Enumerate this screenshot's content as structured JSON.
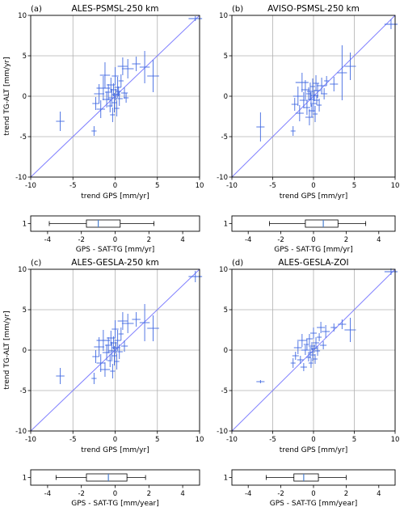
{
  "chart_data": [
    {
      "type": "scatter",
      "panel_label": "(a)",
      "title": "ALES-PSMSL-250 km",
      "xlabel": "trend GPS [mm/yr]",
      "ylabel": "trend TG-ALT [mm/yr]",
      "xlim": [
        -10,
        10
      ],
      "ylim": [
        -10,
        10
      ],
      "xticks": [
        "-10",
        "-5",
        "0",
        "5",
        "10"
      ],
      "yticks": [
        "-10",
        "-5",
        "0",
        "5",
        "10"
      ],
      "grid": true,
      "one_to_one_line": true,
      "points": [
        {
          "x": -6.5,
          "y": -3.1,
          "xe": 0.5,
          "ye": 1.2
        },
        {
          "x": -2.5,
          "y": -4.3,
          "xe": 0.3,
          "ye": 0.6
        },
        {
          "x": -2.3,
          "y": -0.9,
          "xe": 0.4,
          "ye": 0.8
        },
        {
          "x": -1.9,
          "y": 0.3,
          "xe": 0.6,
          "ye": 1.2
        },
        {
          "x": -1.7,
          "y": -1.6,
          "xe": 0.5,
          "ye": 1.1
        },
        {
          "x": -1.4,
          "y": 1.0,
          "xe": 0.8,
          "ye": 1.5
        },
        {
          "x": -1.2,
          "y": 2.6,
          "xe": 0.6,
          "ye": 1.6
        },
        {
          "x": -1.0,
          "y": -0.4,
          "xe": 0.5,
          "ye": 1.0
        },
        {
          "x": -0.8,
          "y": 0.5,
          "xe": 0.4,
          "ye": 1.0
        },
        {
          "x": -0.6,
          "y": -1.2,
          "xe": 0.3,
          "ye": 0.8
        },
        {
          "x": -0.5,
          "y": 1.4,
          "xe": 0.5,
          "ye": 0.9
        },
        {
          "x": -0.4,
          "y": -0.2,
          "xe": 0.4,
          "ye": 1.1
        },
        {
          "x": -0.3,
          "y": -2.3,
          "xe": 0.3,
          "ye": 0.9
        },
        {
          "x": -0.2,
          "y": 0.8,
          "xe": 0.4,
          "ye": 0.8
        },
        {
          "x": -0.1,
          "y": -0.8,
          "xe": 0.3,
          "ye": 1.2
        },
        {
          "x": 0.0,
          "y": 2.5,
          "xe": 0.4,
          "ye": 1.1
        },
        {
          "x": 0.1,
          "y": 0.2,
          "xe": 0.5,
          "ye": 0.7
        },
        {
          "x": 0.2,
          "y": -1.5,
          "xe": 0.3,
          "ye": 1.0
        },
        {
          "x": 0.3,
          "y": 1.1,
          "xe": 0.4,
          "ye": 1.3
        },
        {
          "x": 0.4,
          "y": 0.6,
          "xe": 0.3,
          "ye": 0.6
        },
        {
          "x": 0.5,
          "y": -0.3,
          "xe": 0.4,
          "ye": 0.9
        },
        {
          "x": 0.7,
          "y": 1.9,
          "xe": 0.3,
          "ye": 0.8
        },
        {
          "x": 0.9,
          "y": 3.7,
          "xe": 0.6,
          "ye": 1.1
        },
        {
          "x": 1.1,
          "y": 0.4,
          "xe": 0.4,
          "ye": 0.7
        },
        {
          "x": 1.3,
          "y": -0.2,
          "xe": 0.3,
          "ye": 0.6
        },
        {
          "x": 1.5,
          "y": 3.4,
          "xe": 0.7,
          "ye": 1.2
        },
        {
          "x": 2.5,
          "y": 4.0,
          "xe": 0.5,
          "ye": 0.9
        },
        {
          "x": 3.5,
          "y": 3.6,
          "xe": 0.6,
          "ye": 2.0
        },
        {
          "x": 4.5,
          "y": 2.5,
          "xe": 0.7,
          "ye": 2.0
        },
        {
          "x": 9.5,
          "y": 9.6,
          "xe": 0.8,
          "ye": 0.3
        }
      ]
    },
    {
      "type": "scatter",
      "panel_label": "(b)",
      "title": "AVISO-PSMSL-250 km",
      "xlabel": "trend GPS [mm/yr]",
      "ylabel": "",
      "xlim": [
        -10,
        10
      ],
      "ylim": [
        -10,
        10
      ],
      "xticks": [
        "-10",
        "-5",
        "0",
        "5",
        "10"
      ],
      "yticks": [
        "-10",
        "-5",
        "0",
        "5",
        "10"
      ],
      "grid": true,
      "one_to_one_line": true,
      "points": [
        {
          "x": -6.5,
          "y": -3.8,
          "xe": 0.5,
          "ye": 1.8
        },
        {
          "x": -2.5,
          "y": -4.3,
          "xe": 0.3,
          "ye": 0.6
        },
        {
          "x": -2.3,
          "y": -1.0,
          "xe": 0.4,
          "ye": 0.8
        },
        {
          "x": -1.9,
          "y": 0.0,
          "xe": 0.6,
          "ye": 1.2
        },
        {
          "x": -1.7,
          "y": -2.1,
          "xe": 0.5,
          "ye": 1.0
        },
        {
          "x": -1.4,
          "y": 1.7,
          "xe": 0.8,
          "ye": 1.2
        },
        {
          "x": -1.2,
          "y": -0.5,
          "xe": 0.5,
          "ye": 1.0
        },
        {
          "x": -1.0,
          "y": 0.8,
          "xe": 0.5,
          "ye": 1.2
        },
        {
          "x": -0.8,
          "y": -1.4,
          "xe": 0.4,
          "ye": 0.9
        },
        {
          "x": -0.6,
          "y": 0.3,
          "xe": 0.3,
          "ye": 0.8
        },
        {
          "x": -0.5,
          "y": -2.6,
          "xe": 0.5,
          "ye": 1.0
        },
        {
          "x": -0.4,
          "y": 0.6,
          "xe": 0.4,
          "ye": 1.1
        },
        {
          "x": -0.3,
          "y": -0.4,
          "xe": 0.3,
          "ye": 0.9
        },
        {
          "x": -0.2,
          "y": -1.8,
          "xe": 0.4,
          "ye": 0.8
        },
        {
          "x": -0.1,
          "y": 1.2,
          "xe": 0.3,
          "ye": 1.0
        },
        {
          "x": 0.0,
          "y": -0.9,
          "xe": 0.4,
          "ye": 1.1
        },
        {
          "x": 0.1,
          "y": 0.1,
          "xe": 0.5,
          "ye": 0.7
        },
        {
          "x": 0.2,
          "y": -2.2,
          "xe": 0.3,
          "ye": 1.0
        },
        {
          "x": 0.3,
          "y": 1.6,
          "xe": 0.4,
          "ye": 1.0
        },
        {
          "x": 0.4,
          "y": -0.5,
          "xe": 0.3,
          "ye": 0.6
        },
        {
          "x": 0.5,
          "y": 0.7,
          "xe": 0.4,
          "ye": 0.9
        },
        {
          "x": 0.7,
          "y": -1.1,
          "xe": 0.3,
          "ye": 0.8
        },
        {
          "x": 1.0,
          "y": 1.3,
          "xe": 0.6,
          "ye": 1.0
        },
        {
          "x": 1.3,
          "y": 0.3,
          "xe": 0.4,
          "ye": 0.7
        },
        {
          "x": 1.6,
          "y": 1.9,
          "xe": 0.3,
          "ye": 0.6
        },
        {
          "x": 2.5,
          "y": 1.5,
          "xe": 0.5,
          "ye": 0.9
        },
        {
          "x": 3.5,
          "y": 2.9,
          "xe": 0.6,
          "ye": 3.4
        },
        {
          "x": 4.5,
          "y": 3.7,
          "xe": 0.7,
          "ye": 1.7
        },
        {
          "x": 9.5,
          "y": 8.9,
          "xe": 0.8,
          "ye": 0.6
        }
      ]
    },
    {
      "type": "scatter",
      "panel_label": "(c)",
      "title": "ALES-GESLA-250 km",
      "xlabel": "trend GPS [mm/yr]",
      "ylabel": "trend TG-ALT [mm/yr]",
      "xlim": [
        -10,
        10
      ],
      "ylim": [
        -10,
        10
      ],
      "xticks": [
        "-10",
        "-5",
        "0",
        "5",
        "10"
      ],
      "yticks": [
        "-10",
        "-5",
        "0",
        "5",
        "10"
      ],
      "grid": true,
      "one_to_one_line": true,
      "points": [
        {
          "x": -6.5,
          "y": -3.2,
          "xe": 0.5,
          "ye": 1.0
        },
        {
          "x": -2.5,
          "y": -3.5,
          "xe": 0.3,
          "ye": 0.7
        },
        {
          "x": -2.3,
          "y": -0.8,
          "xe": 0.4,
          "ye": 0.8
        },
        {
          "x": -1.9,
          "y": 0.4,
          "xe": 0.6,
          "ye": 1.2
        },
        {
          "x": -1.7,
          "y": -1.6,
          "xe": 0.5,
          "ye": 1.1
        },
        {
          "x": -1.4,
          "y": 1.2,
          "xe": 0.8,
          "ye": 1.3
        },
        {
          "x": -1.2,
          "y": -2.4,
          "xe": 0.6,
          "ye": 0.9
        },
        {
          "x": -1.0,
          "y": -0.3,
          "xe": 0.5,
          "ye": 1.0
        },
        {
          "x": -0.8,
          "y": 0.6,
          "xe": 0.4,
          "ye": 1.0
        },
        {
          "x": -0.6,
          "y": -1.3,
          "xe": 0.3,
          "ye": 0.8
        },
        {
          "x": -0.5,
          "y": 1.5,
          "xe": 0.5,
          "ye": 0.9
        },
        {
          "x": -0.4,
          "y": -0.1,
          "xe": 0.4,
          "ye": 1.1
        },
        {
          "x": -0.3,
          "y": -2.6,
          "xe": 0.3,
          "ye": 0.9
        },
        {
          "x": -0.2,
          "y": 0.9,
          "xe": 0.4,
          "ye": 0.8
        },
        {
          "x": -0.1,
          "y": -0.7,
          "xe": 0.3,
          "ye": 1.2
        },
        {
          "x": 0.0,
          "y": 2.6,
          "xe": 0.4,
          "ye": 1.1
        },
        {
          "x": 0.1,
          "y": 0.3,
          "xe": 0.5,
          "ye": 0.7
        },
        {
          "x": 0.2,
          "y": -1.4,
          "xe": 0.3,
          "ye": 1.0
        },
        {
          "x": 0.3,
          "y": 1.2,
          "xe": 0.4,
          "ye": 1.3
        },
        {
          "x": 0.5,
          "y": -0.2,
          "xe": 0.4,
          "ye": 0.9
        },
        {
          "x": 0.7,
          "y": 2.0,
          "xe": 0.3,
          "ye": 0.8
        },
        {
          "x": 0.9,
          "y": 3.6,
          "xe": 0.6,
          "ye": 1.1
        },
        {
          "x": 1.1,
          "y": 0.5,
          "xe": 0.4,
          "ye": 0.7
        },
        {
          "x": 1.5,
          "y": 3.3,
          "xe": 0.7,
          "ye": 1.2
        },
        {
          "x": 2.5,
          "y": 3.8,
          "xe": 0.5,
          "ye": 0.9
        },
        {
          "x": 3.5,
          "y": 3.4,
          "xe": 0.6,
          "ye": 2.3
        },
        {
          "x": 4.5,
          "y": 2.7,
          "xe": 0.7,
          "ye": 1.6
        },
        {
          "x": 9.5,
          "y": 9.1,
          "xe": 0.8,
          "ye": 0.7
        }
      ]
    },
    {
      "type": "scatter",
      "panel_label": "(d)",
      "title": "ALES-GESLA-ZOI",
      "xlabel": "trend GPS [mm/yr]",
      "ylabel": "",
      "xlim": [
        -10,
        10
      ],
      "ylim": [
        -10,
        10
      ],
      "xticks": [
        "-10",
        "-5",
        "0",
        "5",
        "10"
      ],
      "yticks": [
        "-10",
        "-5",
        "0",
        "5",
        "10"
      ],
      "grid": true,
      "one_to_one_line": true,
      "points": [
        {
          "x": -6.5,
          "y": -3.9,
          "xe": 0.5,
          "ye": 0.2
        },
        {
          "x": -2.5,
          "y": -1.6,
          "xe": 0.3,
          "ye": 0.6
        },
        {
          "x": -2.2,
          "y": -0.7,
          "xe": 0.4,
          "ye": 0.5
        },
        {
          "x": -1.9,
          "y": 0.3,
          "xe": 0.5,
          "ye": 0.8
        },
        {
          "x": -1.6,
          "y": -1.2,
          "xe": 0.4,
          "ye": 0.5
        },
        {
          "x": -1.4,
          "y": 1.2,
          "xe": 0.6,
          "ye": 0.8
        },
        {
          "x": -1.2,
          "y": -2.1,
          "xe": 0.4,
          "ye": 0.5
        },
        {
          "x": -1.0,
          "y": 0.0,
          "xe": 0.5,
          "ye": 0.6
        },
        {
          "x": -0.8,
          "y": 0.7,
          "xe": 0.4,
          "ye": 0.7
        },
        {
          "x": -0.6,
          "y": -0.9,
          "xe": 0.3,
          "ye": 0.5
        },
        {
          "x": -0.5,
          "y": 1.4,
          "xe": 0.4,
          "ye": 0.6
        },
        {
          "x": -0.4,
          "y": -0.3,
          "xe": 0.3,
          "ye": 0.7
        },
        {
          "x": -0.3,
          "y": -1.6,
          "xe": 0.3,
          "ye": 0.6
        },
        {
          "x": -0.2,
          "y": 0.5,
          "xe": 0.4,
          "ye": 0.5
        },
        {
          "x": -0.1,
          "y": -0.6,
          "xe": 0.3,
          "ye": 0.8
        },
        {
          "x": 0.0,
          "y": 2.1,
          "xe": 0.4,
          "ye": 0.7
        },
        {
          "x": 0.1,
          "y": 0.2,
          "xe": 0.4,
          "ye": 0.5
        },
        {
          "x": 0.2,
          "y": -1.1,
          "xe": 0.3,
          "ye": 0.6
        },
        {
          "x": 0.3,
          "y": 0.9,
          "xe": 0.4,
          "ye": 0.7
        },
        {
          "x": 0.5,
          "y": -0.1,
          "xe": 0.3,
          "ye": 0.6
        },
        {
          "x": 0.7,
          "y": 1.6,
          "xe": 0.3,
          "ye": 0.5
        },
        {
          "x": 0.9,
          "y": 2.8,
          "xe": 0.5,
          "ye": 0.7
        },
        {
          "x": 1.2,
          "y": 0.6,
          "xe": 0.4,
          "ye": 0.5
        },
        {
          "x": 1.5,
          "y": 2.3,
          "xe": 0.5,
          "ye": 0.8
        },
        {
          "x": 2.5,
          "y": 2.8,
          "xe": 0.4,
          "ye": 0.5
        },
        {
          "x": 3.5,
          "y": 3.2,
          "xe": 0.5,
          "ye": 0.6
        },
        {
          "x": 4.5,
          "y": 2.5,
          "xe": 0.7,
          "ye": 1.5
        },
        {
          "x": 9.5,
          "y": 9.7,
          "xe": 0.8,
          "ye": 0.4
        }
      ]
    },
    {
      "type": "boxplot",
      "xlabel": "GPS - SAT-TG [mm/yr]",
      "xlim": [
        -5,
        5
      ],
      "xticks": [
        "-4",
        "-2",
        "0",
        "2",
        "4"
      ],
      "ytick": "1",
      "whisker_low": -3.9,
      "q1": -1.7,
      "median": -1.0,
      "q3": 0.3,
      "whisker_high": 2.3
    },
    {
      "type": "boxplot",
      "xlabel": "GPS - SAT-TG [mm/yr]",
      "xlim": [
        -5,
        5
      ],
      "xticks": [
        "-4",
        "-2",
        "0",
        "2",
        "4"
      ],
      "ytick": "1",
      "whisker_low": -2.7,
      "q1": -0.5,
      "median": 0.6,
      "q3": 1.5,
      "whisker_high": 3.2
    },
    {
      "type": "boxplot",
      "xlabel": "GPS - SAT-TG [mm/year]",
      "xlim": [
        -5,
        5
      ],
      "xticks": [
        "-4",
        "-2",
        "0",
        "2",
        "4"
      ],
      "ytick": "1",
      "whisker_low": -3.5,
      "q1": -1.7,
      "median": -0.4,
      "q3": 0.7,
      "whisker_high": 1.8
    },
    {
      "type": "boxplot",
      "xlabel": "GPS - SAT-TG [mm/year]",
      "xlim": [
        -5,
        5
      ],
      "xticks": [
        "-4",
        "-2",
        "0",
        "2",
        "4"
      ],
      "ytick": "1",
      "whisker_low": -2.9,
      "q1": -1.2,
      "median": -0.6,
      "q3": 0.3,
      "whisker_high": 2.0
    }
  ],
  "colors": {
    "points": "#4169e1",
    "one_to_one": "#8080ff",
    "grid": "#b0b0b0",
    "median": "#4a7fd0"
  }
}
